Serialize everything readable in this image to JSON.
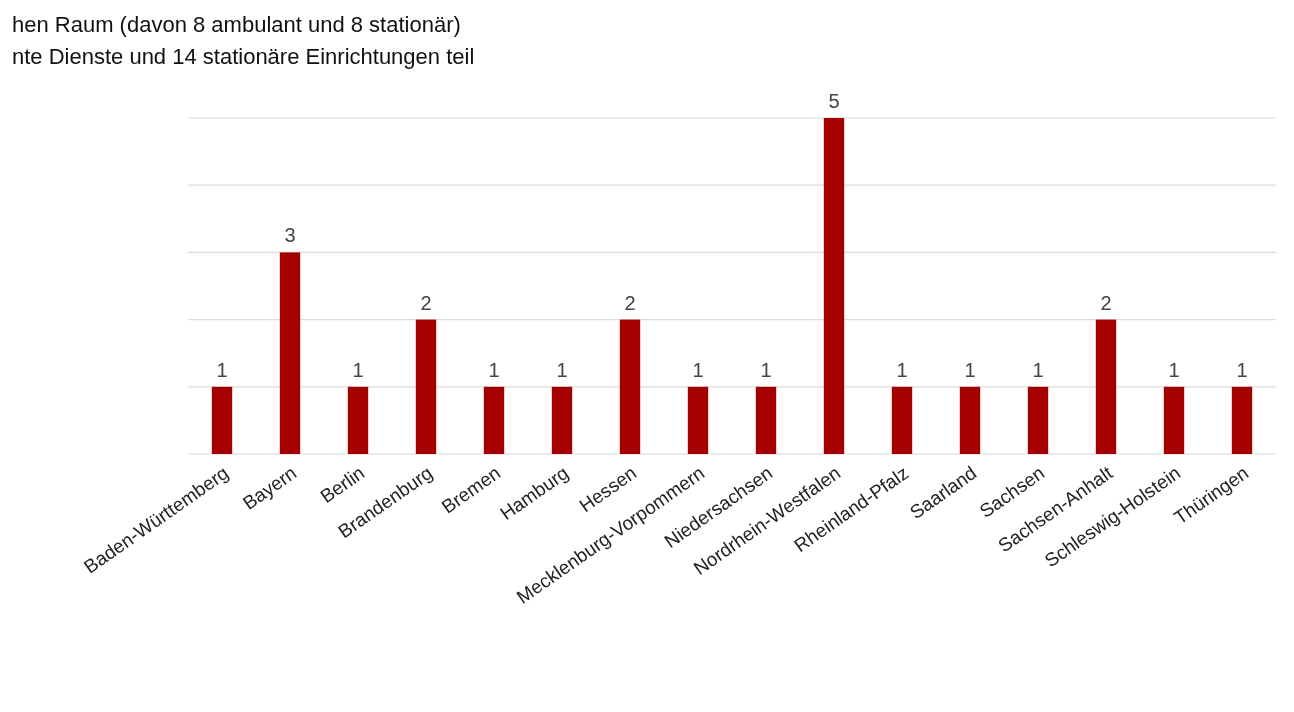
{
  "chart_data": {
    "type": "bar",
    "annotations": [
      "hen Raum  (davon 8 ambulant und 8 stationär)",
      "nte Dienste und 14 stationäre Einrichtungen teil"
    ],
    "categories": [
      "Baden-Württemberg",
      "Bayern",
      "Berlin",
      "Brandenburg",
      "Bremen",
      "Hamburg",
      "Hessen",
      "Mecklenburg-Vorpommern",
      "Niedersachsen",
      "Nordrhein-Westfalen",
      "Rheinland-Pfalz",
      "Saarland",
      "Sachsen",
      "Sachsen-Anhalt",
      "Schleswig-Holstein",
      "Thüringen"
    ],
    "values": [
      1,
      3,
      1,
      2,
      1,
      1,
      2,
      1,
      1,
      5,
      1,
      1,
      1,
      2,
      1,
      1
    ],
    "color": "#a50000",
    "ylim": [
      0,
      5
    ],
    "yticks": [
      {
        "value": 0,
        "label": null
      },
      {
        "value": 1,
        "label": null
      },
      {
        "value": 2,
        "label": null
      },
      {
        "value": 3,
        "label": null
      },
      {
        "value": 4,
        "label": null
      },
      {
        "value": 5,
        "label": null
      }
    ],
    "grid": "y",
    "tick_labels": "x",
    "data_labels": true
  }
}
